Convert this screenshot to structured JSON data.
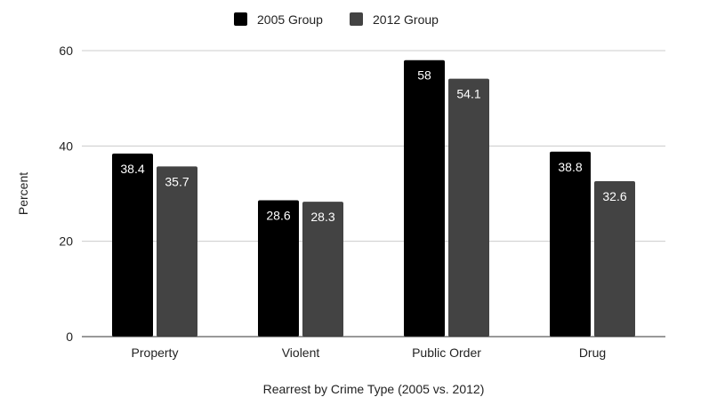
{
  "chart_data": {
    "type": "bar",
    "title": "",
    "categories": [
      "Property",
      "Violent",
      "Public Order",
      "Drug"
    ],
    "series": [
      {
        "name": "2005 Group",
        "color": "#000000",
        "values": [
          38.4,
          28.6,
          58,
          38.8
        ]
      },
      {
        "name": "2012 Group",
        "color": "#434343",
        "values": [
          35.7,
          28.3,
          54.1,
          32.6
        ]
      }
    ],
    "xlabel": "Rearrest by Crime Type (2005 vs. 2012)",
    "ylabel": "Percent",
    "ylim": [
      0,
      60
    ],
    "yticks": [
      0,
      20,
      40,
      60
    ],
    "grid": true,
    "legend_position": "top-center",
    "data_labels": true
  }
}
